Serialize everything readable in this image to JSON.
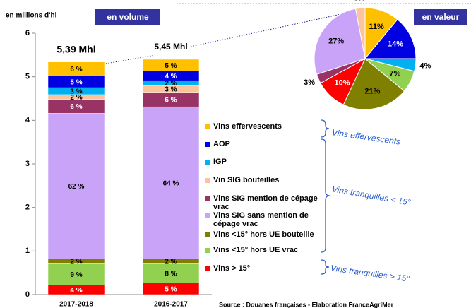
{
  "chart_data": [
    {
      "type": "bar",
      "stacked": true,
      "title": "en volume",
      "y_label": "en millions d'hl",
      "categories": [
        "2017-2018",
        "2016-2017"
      ],
      "ylim": [
        0,
        6
      ],
      "yticks": [
        0,
        1,
        2,
        3,
        4,
        5,
        6
      ],
      "totals": [
        5.39,
        5.45
      ],
      "total_labels": [
        "5,39 Mhl",
        "5,45 Mhl"
      ],
      "series": [
        {
          "name": "Vins > 15°",
          "color": "#ff0000",
          "values": [
            0.22,
            0.27
          ],
          "value_labels": [
            "4 %",
            "5 %"
          ]
        },
        {
          "name": "Vins <15° hors UE vrac",
          "color": "#92d050",
          "values": [
            0.49,
            0.44
          ],
          "value_labels": [
            "9 %",
            "8 %"
          ]
        },
        {
          "name": "Vins <15° hors UE bouteille",
          "color": "#808000",
          "values": [
            0.11,
            0.11
          ],
          "value_labels": [
            "2 %",
            "2 %"
          ]
        },
        {
          "name": "Vins SIG sans mention de cépage vrac",
          "color": "#c9a3f7",
          "values": [
            3.34,
            3.49
          ],
          "value_labels": [
            "62 %",
            "64 %"
          ]
        },
        {
          "name": "Vins SIG mention de cépage vrac",
          "color": "#993366",
          "values": [
            0.32,
            0.33
          ],
          "value_labels": [
            "6 %",
            "6 %"
          ]
        },
        {
          "name": "Vin SIG bouteilles",
          "color": "#fbc49a",
          "values": [
            0.11,
            0.16
          ],
          "value_labels": [
            "2 %",
            "3 %"
          ]
        },
        {
          "name": "IGP",
          "color": "#00b0f0",
          "values": [
            0.16,
            0.11
          ],
          "value_labels": [
            "3 %",
            "2 %"
          ]
        },
        {
          "name": "AOP",
          "color": "#0000e0",
          "values": [
            0.27,
            0.22
          ],
          "value_labels": [
            "5 %",
            "4 %"
          ]
        },
        {
          "name": "Vins effervescents",
          "color": "#ffc000",
          "values": [
            0.32,
            0.27
          ],
          "value_labels": [
            "6 %",
            "5 %"
          ]
        }
      ],
      "groups": [
        "Vins effervescents",
        "Vins tranquilles < 15°",
        "Vins tranquilles > 15°"
      ],
      "source": "Source : Douanes françaises - Elaboration FranceAgriMer"
    },
    {
      "type": "pie",
      "title": "en valeur",
      "values": [
        11,
        14,
        4,
        7,
        21,
        10,
        3,
        27,
        3
      ],
      "value_labels": [
        "11%",
        "14%",
        "4%",
        "7%",
        "21%",
        "10%",
        "3%",
        "27%",
        "3%"
      ],
      "colors": [
        "#ffc000",
        "#0000e0",
        "#00b0f0",
        "#92d050",
        "#808000",
        "#ff0000",
        "#993366",
        "#c9a3f7",
        "#fbc49a"
      ]
    }
  ]
}
